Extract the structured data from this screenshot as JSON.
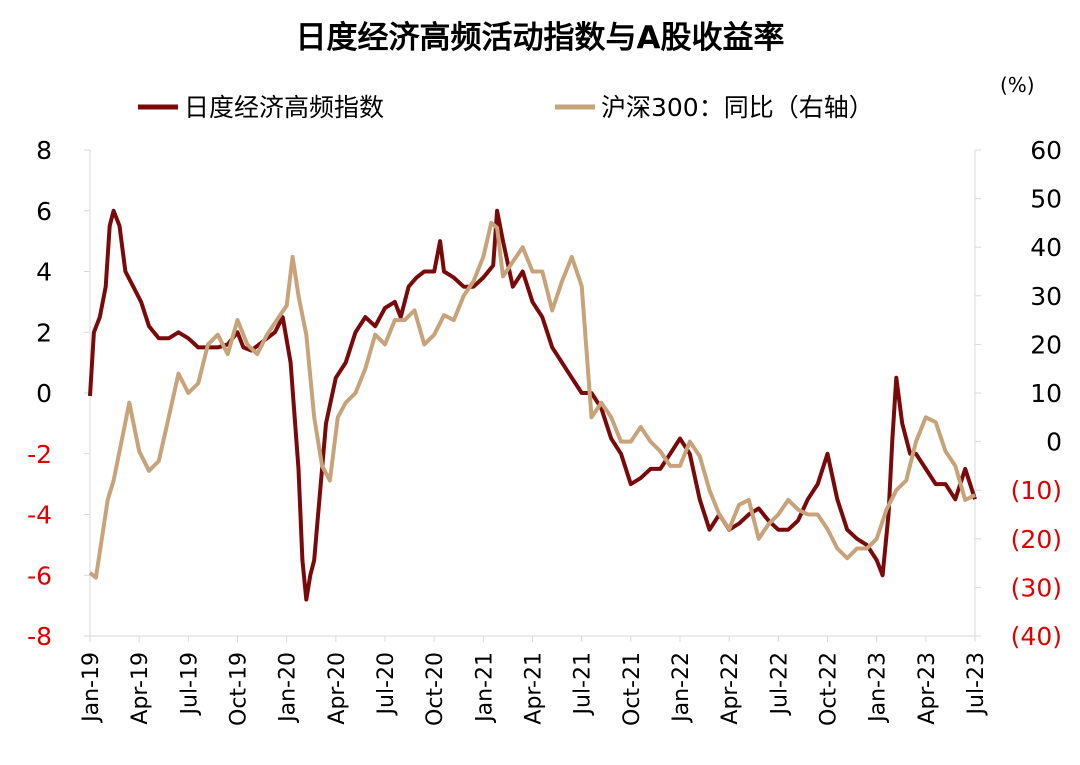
{
  "chart_data": {
    "type": "line",
    "title": "日度经济高频活动指数与A股收益率",
    "unit_label": "(%)",
    "legend_position": "top",
    "grid": false,
    "x_tick_labels": [
      "Jan-19",
      "Apr-19",
      "Jul-19",
      "Oct-19",
      "Jan-20",
      "Apr-20",
      "Jul-20",
      "Oct-20",
      "Jan-21",
      "Apr-21",
      "Jul-21",
      "Oct-21",
      "Jan-22",
      "Apr-22",
      "Jul-22",
      "Oct-22",
      "Jan-23",
      "Apr-23",
      "Jul-23"
    ],
    "x_tick_positions": [
      2019.0,
      2019.25,
      2019.5,
      2019.75,
      2020.0,
      2020.25,
      2020.5,
      2020.75,
      2021.0,
      2021.25,
      2021.5,
      2021.75,
      2022.0,
      2022.25,
      2022.5,
      2022.75,
      2023.0,
      2023.25,
      2023.5
    ],
    "xlim": [
      2019.0,
      2023.5
    ],
    "y_left": {
      "range": [
        -8,
        8
      ],
      "ticks": [
        8,
        6,
        4,
        2,
        0,
        -2,
        -4,
        -6,
        -8
      ],
      "tick_labels": [
        "8",
        "6",
        "4",
        "2",
        "0",
        "-2",
        "-4",
        "-6",
        "-8"
      ],
      "tick_colors": [
        "#000000",
        "#000000",
        "#000000",
        "#000000",
        "#000000",
        "#e00000",
        "#e00000",
        "#e00000",
        "#e00000"
      ]
    },
    "y_right": {
      "range": [
        -40,
        60
      ],
      "ticks": [
        60,
        50,
        40,
        30,
        20,
        10,
        0,
        -10,
        -20,
        -30,
        -40
      ],
      "tick_labels": [
        "60",
        "50",
        "40",
        "30",
        "20",
        "10",
        "0",
        "(10)",
        "(20)",
        "(30)",
        "(40)"
      ],
      "tick_colors": [
        "#000000",
        "#000000",
        "#000000",
        "#000000",
        "#000000",
        "#000000",
        "#000000",
        "#e00000",
        "#e00000",
        "#e00000",
        "#e00000"
      ]
    },
    "series": [
      {
        "name": "日度经济高频指数",
        "axis": "left",
        "color": "#7a0a0a",
        "x": [
          2019.0,
          2019.02,
          2019.05,
          2019.08,
          2019.1,
          2019.12,
          2019.15,
          2019.18,
          2019.22,
          2019.26,
          2019.3,
          2019.35,
          2019.4,
          2019.45,
          2019.5,
          2019.55,
          2019.6,
          2019.65,
          2019.7,
          2019.75,
          2019.78,
          2019.82,
          2019.86,
          2019.9,
          2019.94,
          2019.98,
          2020.02,
          2020.06,
          2020.08,
          2020.1,
          2020.12,
          2020.14,
          2020.16,
          2020.2,
          2020.25,
          2020.3,
          2020.35,
          2020.4,
          2020.45,
          2020.5,
          2020.55,
          2020.58,
          2020.62,
          2020.66,
          2020.7,
          2020.75,
          2020.78,
          2020.8,
          2020.85,
          2020.9,
          2020.95,
          2021.0,
          2021.05,
          2021.07,
          2021.1,
          2021.15,
          2021.2,
          2021.25,
          2021.3,
          2021.35,
          2021.4,
          2021.45,
          2021.5,
          2021.55,
          2021.6,
          2021.65,
          2021.7,
          2021.75,
          2021.8,
          2021.85,
          2021.9,
          2021.95,
          2022.0,
          2022.05,
          2022.1,
          2022.15,
          2022.2,
          2022.25,
          2022.3,
          2022.35,
          2022.4,
          2022.45,
          2022.5,
          2022.55,
          2022.6,
          2022.65,
          2022.7,
          2022.75,
          2022.8,
          2022.85,
          2022.9,
          2022.95,
          2023.0,
          2023.03,
          2023.06,
          2023.08,
          2023.1,
          2023.13,
          2023.17,
          2023.2,
          2023.25,
          2023.3,
          2023.35,
          2023.4,
          2023.45,
          2023.5
        ],
        "values": [
          -0.1,
          2.0,
          2.5,
          3.5,
          5.5,
          6.0,
          5.5,
          4.0,
          3.5,
          3.0,
          2.2,
          1.8,
          1.8,
          2.0,
          1.8,
          1.5,
          1.5,
          1.5,
          1.6,
          2.0,
          1.5,
          1.4,
          1.6,
          1.8,
          2.0,
          2.5,
          1.0,
          -2.5,
          -5.5,
          -6.8,
          -6.0,
          -5.5,
          -4.0,
          -1.0,
          0.5,
          1.0,
          2.0,
          2.5,
          2.2,
          2.8,
          3.0,
          2.5,
          3.5,
          3.8,
          4.0,
          4.0,
          5.0,
          4.0,
          3.8,
          3.5,
          3.5,
          3.8,
          4.2,
          6.0,
          5.0,
          3.5,
          4.0,
          3.0,
          2.5,
          1.5,
          1.0,
          0.5,
          0.0,
          0.0,
          -0.5,
          -1.5,
          -2.0,
          -3.0,
          -2.8,
          -2.5,
          -2.5,
          -2.0,
          -1.5,
          -2.0,
          -3.5,
          -4.5,
          -4.0,
          -4.5,
          -4.3,
          -4.0,
          -3.8,
          -4.2,
          -4.5,
          -4.5,
          -4.2,
          -3.5,
          -3.0,
          -2.0,
          -3.5,
          -4.5,
          -4.8,
          -5.0,
          -5.5,
          -6.0,
          -4.0,
          -1.5,
          0.5,
          -1.0,
          -2.0,
          -2.0,
          -2.5,
          -3.0,
          -3.0,
          -3.5,
          -2.5,
          -3.5
        ]
      },
      {
        "name": "沪深300：同比（右轴）",
        "axis": "right",
        "color": "#c8a37a",
        "x": [
          2019.0,
          2019.03,
          2019.06,
          2019.09,
          2019.12,
          2019.16,
          2019.2,
          2019.25,
          2019.3,
          2019.35,
          2019.4,
          2019.45,
          2019.5,
          2019.55,
          2019.6,
          2019.65,
          2019.7,
          2019.75,
          2019.8,
          2019.85,
          2019.9,
          2019.95,
          2020.0,
          2020.03,
          2020.06,
          2020.1,
          2020.14,
          2020.18,
          2020.22,
          2020.26,
          2020.3,
          2020.35,
          2020.4,
          2020.45,
          2020.5,
          2020.55,
          2020.6,
          2020.65,
          2020.7,
          2020.75,
          2020.8,
          2020.85,
          2020.9,
          2020.95,
          2021.0,
          2021.04,
          2021.07,
          2021.1,
          2021.15,
          2021.2,
          2021.25,
          2021.3,
          2021.35,
          2021.4,
          2021.45,
          2021.5,
          2021.55,
          2021.6,
          2021.65,
          2021.7,
          2021.75,
          2021.8,
          2021.85,
          2021.9,
          2021.95,
          2022.0,
          2022.05,
          2022.1,
          2022.15,
          2022.2,
          2022.25,
          2022.3,
          2022.35,
          2022.4,
          2022.45,
          2022.5,
          2022.55,
          2022.6,
          2022.65,
          2022.7,
          2022.75,
          2022.8,
          2022.85,
          2022.9,
          2022.95,
          2023.0,
          2023.05,
          2023.1,
          2023.15,
          2023.2,
          2023.25,
          2023.3,
          2023.35,
          2023.4,
          2023.45,
          2023.5
        ],
        "values": [
          -27,
          -28,
          -20,
          -12,
          -8,
          0,
          8,
          -2,
          -6,
          -4,
          5,
          14,
          10,
          12,
          20,
          22,
          18,
          25,
          20,
          18,
          22,
          25,
          28,
          38,
          30,
          22,
          5,
          -5,
          -8,
          5,
          8,
          10,
          15,
          22,
          20,
          25,
          25,
          27,
          20,
          22,
          26,
          25,
          30,
          33,
          38,
          45,
          44,
          34,
          37,
          40,
          35,
          35,
          27,
          33,
          38,
          32,
          5,
          8,
          5,
          0,
          0,
          3,
          0,
          -2,
          -5,
          -5,
          0,
          -3,
          -10,
          -15,
          -18,
          -13,
          -12,
          -20,
          -17,
          -15,
          -12,
          -14,
          -15,
          -15,
          -18,
          -22,
          -24,
          -22,
          -22,
          -20,
          -14,
          -10,
          -8,
          0,
          5,
          4,
          -2,
          -5,
          -12,
          -11
        ]
      }
    ]
  }
}
